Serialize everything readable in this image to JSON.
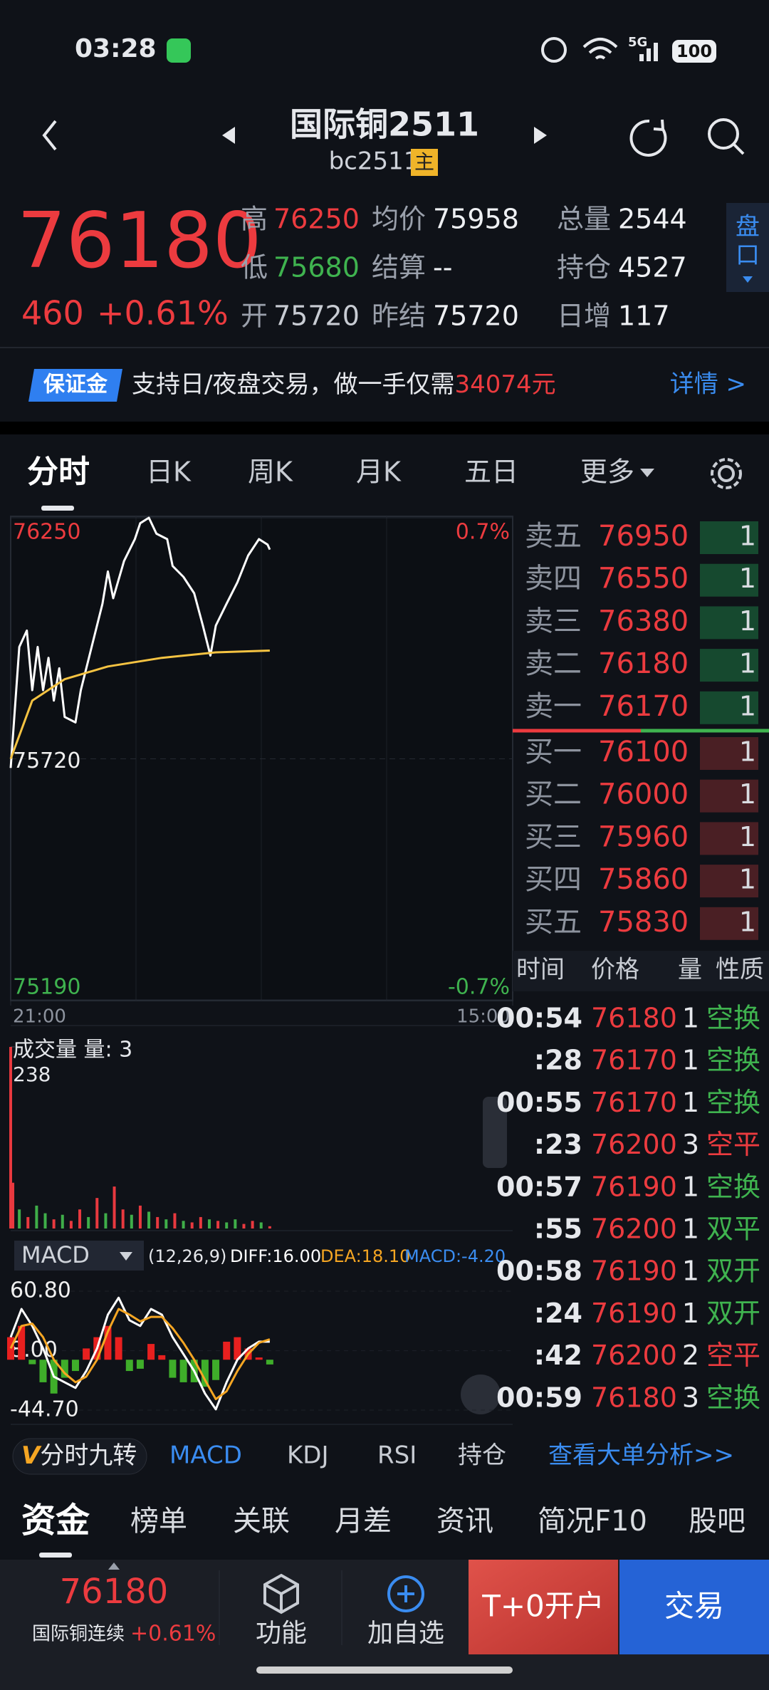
{
  "status_bar": {
    "time": "03:28",
    "network": "5G",
    "battery": "100"
  },
  "header": {
    "title": "国际铜2511",
    "code": "bc2511",
    "badge": "主"
  },
  "quote": {
    "price": 76180,
    "change": 460,
    "change_pct": "+0.61%",
    "stats": [
      {
        "label": "高",
        "value": 76250,
        "color": "#ec3b3f"
      },
      {
        "label": "均价",
        "value": 75958,
        "color": "#eef0f3"
      },
      {
        "label": "总量",
        "value": 2544,
        "color": "#eef0f3"
      },
      {
        "label": "低",
        "value": 75680,
        "color": "#3fb34f"
      },
      {
        "label": "结算",
        "value": "--",
        "color": "#eef0f3"
      },
      {
        "label": "持仓",
        "value": 4527,
        "color": "#eef0f3"
      },
      {
        "label": "开",
        "value": 75720,
        "color": "#c8ccd3"
      },
      {
        "label": "昨结",
        "value": 75720,
        "color": "#eef0f3"
      },
      {
        "label": "日增",
        "value": 117,
        "color": "#eef0f3"
      }
    ],
    "side_tab": [
      "盘",
      "口"
    ]
  },
  "banner": {
    "badge": "保证金",
    "text": "支持日/夜盘交易，做一手仅需",
    "amount": "34074元",
    "link": "详情 >"
  },
  "tabs": [
    "分时",
    "日K",
    "周K",
    "月K",
    "五日",
    "更多"
  ],
  "chart_data": [
    {
      "type": "line",
      "xlim": [
        0,
        465
      ],
      "xticks": [
        {
          "value": 0,
          "label": "21:00"
        },
        {
          "value": 465,
          "label": "15:00"
        }
      ],
      "ylim": [
        75190,
        76250
      ],
      "yticks": [
        76250,
        75720,
        75190
      ],
      "y2lim": [
        -0.7,
        0.7
      ],
      "y2ticks": [
        {
          "value": 0.7,
          "label": "0.7%"
        },
        {
          "value": -0.7,
          "label": "-0.7%"
        }
      ],
      "series": [
        {
          "color": "#ffffff",
          "x": [
            0,
            8,
            15,
            20,
            25,
            30,
            35,
            40,
            45,
            50,
            60,
            65,
            75,
            85,
            90,
            95,
            105,
            115,
            120,
            128,
            135,
            145,
            150,
            160,
            170,
            178,
            185,
            190,
            200,
            210,
            220,
            230,
            238,
            240
          ],
          "values": [
            75700,
            75966,
            76002,
            75871,
            75966,
            75871,
            75942,
            75848,
            75919,
            75812,
            75800,
            75871,
            75966,
            76061,
            76132,
            76073,
            76155,
            76203,
            76238,
            76250,
            76215,
            76203,
            76144,
            76120,
            76084,
            76013,
            75947,
            76013,
            76061,
            76108,
            76167,
            76203,
            76191,
            76180
          ]
        },
        {
          "color": "#f5c342",
          "x": [
            0,
            20,
            50,
            90,
            140,
            190,
            240
          ],
          "values": [
            75720,
            75848,
            75895,
            75923,
            75942,
            75954,
            75958
          ]
        }
      ]
    },
    {
      "type": "bar",
      "title": "成交量 量: 3",
      "xlim": [
        0,
        465
      ],
      "ylim": [
        0,
        238
      ],
      "yticks": [
        238
      ],
      "x": [
        0,
        2,
        8,
        16,
        24,
        32,
        40,
        48,
        56,
        64,
        72,
        80,
        88,
        96,
        104,
        112,
        120,
        128,
        136,
        144,
        152,
        160,
        168,
        176,
        184,
        192,
        200,
        208,
        216,
        224,
        232,
        240
      ],
      "values": [
        238,
        60,
        25,
        15,
        30,
        20,
        12,
        18,
        10,
        25,
        15,
        40,
        20,
        55,
        25,
        18,
        30,
        22,
        15,
        12,
        20,
        10,
        8,
        15,
        12,
        10,
        8,
        12,
        6,
        10,
        8,
        3
      ],
      "colors": [
        "#e8393f",
        "#e8393f",
        "#3fae49",
        "#e8393f",
        "#3fae49",
        "#3fae49",
        "#e8393f",
        "#3fae49",
        "#e8393f",
        "#e8393f",
        "#3fae49",
        "#e8393f",
        "#3fae49",
        "#e8393f",
        "#e8393f",
        "#3fae49",
        "#e8393f",
        "#3fae49",
        "#e8393f",
        "#3fae49",
        "#e8393f",
        "#3fae49",
        "#e8393f",
        "#e8393f",
        "#3fae49",
        "#e8393f",
        "#3fae49",
        "#3fae49",
        "#e8393f",
        "#e8393f",
        "#3fae49",
        "#e8393f"
      ]
    },
    {
      "type": "macd",
      "title": "MACD",
      "params": "(12,26,9)",
      "xlim": [
        0,
        465
      ],
      "ylim": [
        -44.7,
        60.8
      ],
      "yticks": [
        {
          "value": 60.8,
          "label": "60.80"
        },
        {
          "value": 8,
          "label": "8.00"
        },
        {
          "value": -44.7,
          "label": "-44.70"
        }
      ],
      "x": [
        0,
        10,
        20,
        30,
        40,
        50,
        60,
        70,
        80,
        90,
        100,
        110,
        120,
        130,
        140,
        150,
        160,
        170,
        180,
        190,
        200,
        210,
        220,
        230,
        240
      ],
      "series": [
        {
          "label": "DIFF:16.00",
          "color": "#ffffff",
          "values": [
            20,
            45,
            30,
            10,
            -15,
            -20,
            -25,
            -10,
            10,
            40,
            55,
            35,
            30,
            45,
            40,
            20,
            5,
            -10,
            -30,
            -44,
            -20,
            0,
            10,
            16,
            16
          ]
        },
        {
          "label": "DEA:18.10",
          "color": "#f5a623",
          "values": [
            10,
            30,
            32,
            20,
            0,
            -12,
            -20,
            -15,
            0,
            25,
            45,
            40,
            34,
            38,
            38,
            28,
            15,
            0,
            -18,
            -35,
            -28,
            -10,
            5,
            15,
            18.1
          ]
        }
      ],
      "histogram": {
        "label": "MACD:-4.20",
        "color": "#3a8cf0",
        "up_color": "#e8201f",
        "down_color": "#3fae2a",
        "values": [
          20,
          30,
          -4,
          -20,
          -30,
          -16,
          -10,
          10,
          20,
          30,
          20,
          -10,
          -8,
          14,
          4,
          -16,
          -20,
          -20,
          -24,
          -18,
          16,
          20,
          10,
          2,
          -4.2
        ]
      }
    }
  ],
  "order_book": {
    "asks": [
      {
        "label": "卖五",
        "price": 76950,
        "volume": 1
      },
      {
        "label": "卖四",
        "price": 76550,
        "volume": 1
      },
      {
        "label": "卖三",
        "price": 76380,
        "volume": 1
      },
      {
        "label": "卖二",
        "price": 76180,
        "volume": 1
      },
      {
        "label": "卖一",
        "price": 76170,
        "volume": 1
      }
    ],
    "bids": [
      {
        "label": "买一",
        "price": 76100,
        "volume": 1
      },
      {
        "label": "买二",
        "price": 76000,
        "volume": 1
      },
      {
        "label": "买三",
        "price": 75960,
        "volume": 1
      },
      {
        "label": "买四",
        "price": 75860,
        "volume": 1
      },
      {
        "label": "买五",
        "price": 75830,
        "volume": 1
      }
    ]
  },
  "trades": {
    "headers": [
      "时间",
      "价格",
      "量",
      "性质"
    ],
    "rows": [
      {
        "time": "00:54",
        "price": 76180,
        "volume": 1,
        "nature": "空换",
        "nature_color": "#3fb34f"
      },
      {
        "time": ":28",
        "price": 76170,
        "volume": 1,
        "nature": "空换",
        "nature_color": "#3fb34f"
      },
      {
        "time": "00:55",
        "price": 76170,
        "volume": 1,
        "nature": "空换",
        "nature_color": "#3fb34f"
      },
      {
        "time": ":23",
        "price": 76200,
        "volume": 3,
        "nature": "空平",
        "nature_color": "#ec3b3f"
      },
      {
        "time": "00:57",
        "price": 76190,
        "volume": 1,
        "nature": "空换",
        "nature_color": "#3fb34f"
      },
      {
        "time": ":55",
        "price": 76200,
        "volume": 1,
        "nature": "双平",
        "nature_color": "#3fb34f"
      },
      {
        "time": "00:58",
        "price": 76190,
        "volume": 1,
        "nature": "双开",
        "nature_color": "#3fb34f"
      },
      {
        "time": ":24",
        "price": 76190,
        "volume": 1,
        "nature": "双开",
        "nature_color": "#3fb34f"
      },
      {
        "time": ":42",
        "price": 76200,
        "volume": 2,
        "nature": "空平",
        "nature_color": "#ec3b3f"
      },
      {
        "time": "00:59",
        "price": 76180,
        "volume": 3,
        "nature": "空换",
        "nature_color": "#3fb34f"
      }
    ]
  },
  "indicator_bar": {
    "badge_mark": "V",
    "badge_text": "分时九转",
    "items": [
      "MACD",
      "KDJ",
      "RSI",
      "持仓"
    ],
    "link": "查看大单分析>>"
  },
  "bottom_tabs": [
    "资金",
    "榜单",
    "关联",
    "月差",
    "资讯",
    "简况F10",
    "股吧"
  ],
  "footer": {
    "price": 76180,
    "name": "国际铜连续",
    "change_pct": "+0.61%",
    "buttons": [
      "功能",
      "加自选",
      "T+0开户",
      "交易"
    ]
  }
}
